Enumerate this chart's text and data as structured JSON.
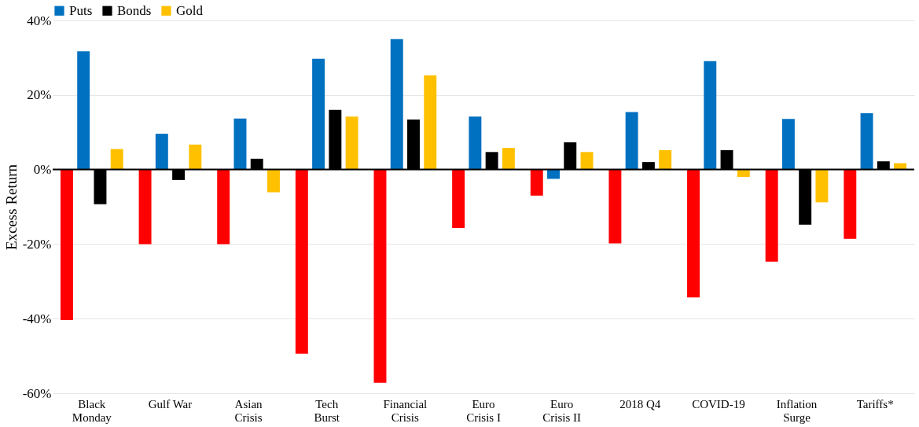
{
  "chart_data": {
    "type": "bar",
    "ylabel": "Excess Return",
    "categories": [
      "Black Monday",
      "Gulf War",
      "Asian Crisis",
      "Tech Burst",
      "Financial Crisis",
      "Euro Crisis I",
      "Euro Crisis II",
      "2018 Q4",
      "COVID-19",
      "Inflation Surge",
      "Tariffs*"
    ],
    "series": [
      {
        "color": "#ff0000",
        "values": [
          -40.4,
          -20,
          -20,
          -49.4,
          -57.2,
          -15.7,
          -7.0,
          -19.8,
          -34.3,
          -24.7,
          -18.6
        ]
      },
      {
        "name": "Puts",
        "color": "#0070c0",
        "values": [
          31.7,
          9.6,
          13.7,
          29.7,
          35.0,
          14.2,
          -2.5,
          15.4,
          29.1,
          13.6,
          15.1
        ]
      },
      {
        "name": "Bonds",
        "color": "#000000",
        "values": [
          -9.3,
          -2.8,
          2.9,
          16.0,
          13.4,
          4.7,
          7.3,
          2.0,
          5.2,
          -14.8,
          2.2
        ]
      },
      {
        "name": "Gold",
        "color": "#ffc000",
        "values": [
          5.5,
          6.7,
          -6.1,
          14.2,
          25.3,
          5.8,
          4.7,
          5.2,
          -2.0,
          -8.8,
          1.7
        ]
      }
    ],
    "ylim": [
      -60,
      40
    ],
    "yticks": [
      {
        "value": -60,
        "label": "-60%"
      },
      {
        "value": -40,
        "label": "-40%"
      },
      {
        "value": -20,
        "label": "-20%"
      },
      {
        "value": 0,
        "label": "0%"
      },
      {
        "value": 20,
        "label": "20%"
      },
      {
        "value": 40,
        "label": "40%"
      }
    ],
    "ref_lines": [
      {
        "axis": "y",
        "value": 0,
        "color": "#000000"
      }
    ],
    "grid": "y",
    "legend": "top"
  }
}
